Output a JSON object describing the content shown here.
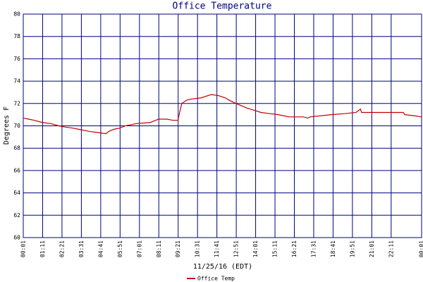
{
  "chart_data": {
    "type": "line",
    "title": "Office Temperature",
    "x_label": "11/25/16 (EDT)",
    "y_label": "Degrees F",
    "xlim": [
      1,
      1441
    ],
    "ylim": [
      60,
      80
    ],
    "xticks": [
      {
        "value": 1,
        "label": "00:01"
      },
      {
        "value": 71,
        "label": "01:11"
      },
      {
        "value": 141,
        "label": "02:21"
      },
      {
        "value": 211,
        "label": "03:31"
      },
      {
        "value": 281,
        "label": "04:41"
      },
      {
        "value": 351,
        "label": "05:51"
      },
      {
        "value": 421,
        "label": "07:01"
      },
      {
        "value": 491,
        "label": "08:11"
      },
      {
        "value": 561,
        "label": "09:21"
      },
      {
        "value": 631,
        "label": "10:31"
      },
      {
        "value": 701,
        "label": "11:41"
      },
      {
        "value": 771,
        "label": "12:51"
      },
      {
        "value": 841,
        "label": "14:01"
      },
      {
        "value": 911,
        "label": "15:11"
      },
      {
        "value": 981,
        "label": "16:21"
      },
      {
        "value": 1051,
        "label": "17:31"
      },
      {
        "value": 1121,
        "label": "18:41"
      },
      {
        "value": 1191,
        "label": "19:51"
      },
      {
        "value": 1261,
        "label": "21:01"
      },
      {
        "value": 1331,
        "label": "22:11"
      },
      {
        "value": 1441,
        "label": "00:01"
      }
    ],
    "yticks": [
      60,
      62,
      64,
      66,
      68,
      70,
      72,
      74,
      76,
      78,
      80
    ],
    "grid": true,
    "grid_color": "#000080",
    "series": [
      {
        "name": "Office Temp",
        "color": "#c00000",
        "x": [
          1,
          20,
          40,
          70,
          100,
          130,
          150,
          180,
          200,
          240,
          270,
          300,
          310,
          330,
          350,
          370,
          390,
          410,
          460,
          470,
          480,
          490,
          520,
          541,
          560,
          574,
          592,
          610,
          643,
          668,
          681,
          707,
          732,
          745,
          770,
          790,
          809,
          835,
          860,
          890,
          923,
          962,
          1013,
          1030,
          1038,
          1115,
          1166,
          1204,
          1220,
          1224,
          1250,
          1375,
          1380,
          1416,
          1440
        ],
        "values": [
          70.7,
          70.6,
          70.5,
          70.3,
          70.2,
          70.0,
          69.9,
          69.8,
          69.7,
          69.5,
          69.4,
          69.3,
          69.5,
          69.7,
          69.8,
          70.0,
          70.1,
          70.2,
          70.3,
          70.4,
          70.5,
          70.6,
          70.6,
          70.5,
          70.5,
          72.0,
          72.3,
          72.4,
          72.5,
          72.7,
          72.8,
          72.7,
          72.5,
          72.3,
          72.0,
          71.8,
          71.6,
          71.4,
          71.2,
          71.1,
          71.0,
          70.8,
          70.8,
          70.7,
          70.8,
          71.0,
          71.1,
          71.2,
          71.5,
          71.2,
          71.2,
          71.2,
          71.0,
          70.9,
          70.8
        ]
      }
    ]
  }
}
